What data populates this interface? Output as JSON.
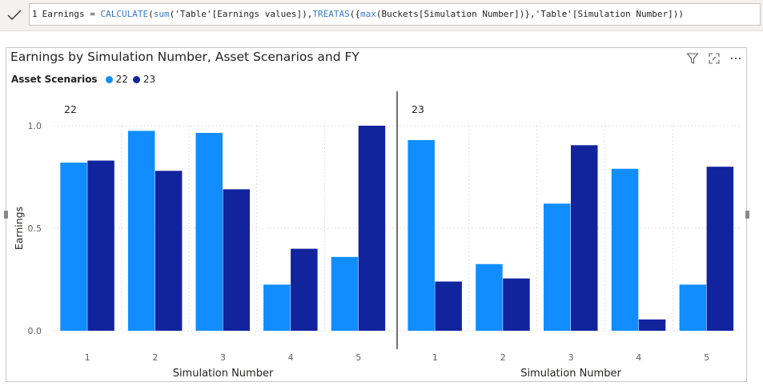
{
  "formula": {
    "line_number": "1",
    "measure_name": "Earnings",
    "equals": " = ",
    "fn_calculate": "CALCULATE",
    "part_sum_open": "(",
    "fn_sum": "sum",
    "arg_earnings": "('Table'[Earnings values]),",
    "fn_treatas": "TREATAS",
    "part_treatas_open": "({",
    "fn_max": "max",
    "arg_buckets": "(Buckets[Simulation Number])},'Table'[Simulation Number]))"
  },
  "visual": {
    "title": "Earnings by Simulation Number, Asset Scenarios and FY",
    "legend_title": "Asset Scenarios",
    "icons": [
      "filter-icon",
      "focus-mode-icon",
      "more-options-icon"
    ]
  },
  "colors": {
    "series_22": "#118dff",
    "series_23": "#12239e",
    "gridline": "#d6d6d6",
    "divider": "#252423",
    "axis_text": "#605e5c"
  },
  "chart_data": {
    "type": "bar",
    "title": "Earnings by Simulation Number, Asset Scenarios and FY",
    "xlabel": "Simulation Number",
    "ylabel": "Earnings",
    "ylim": [
      0,
      1.0
    ],
    "yticks": [
      "0.0",
      "0.5",
      "1.0"
    ],
    "ytick_values": [
      0,
      0.5,
      1.0
    ],
    "legend_position": "top-left",
    "grid": true,
    "categories": [
      "1",
      "2",
      "3",
      "4",
      "5"
    ],
    "panels": [
      {
        "label": "22",
        "series": [
          {
            "name": "22",
            "values": [
              0.82,
              0.975,
              0.965,
              0.225,
              0.36
            ]
          },
          {
            "name": "23",
            "values": [
              0.83,
              0.78,
              0.69,
              0.4,
              1.0
            ]
          }
        ]
      },
      {
        "label": "23",
        "series": [
          {
            "name": "22",
            "values": [
              0.93,
              0.325,
              0.62,
              0.79,
              0.225
            ]
          },
          {
            "name": "23",
            "values": [
              0.24,
              0.255,
              0.905,
              0.055,
              0.8
            ]
          }
        ]
      }
    ]
  }
}
